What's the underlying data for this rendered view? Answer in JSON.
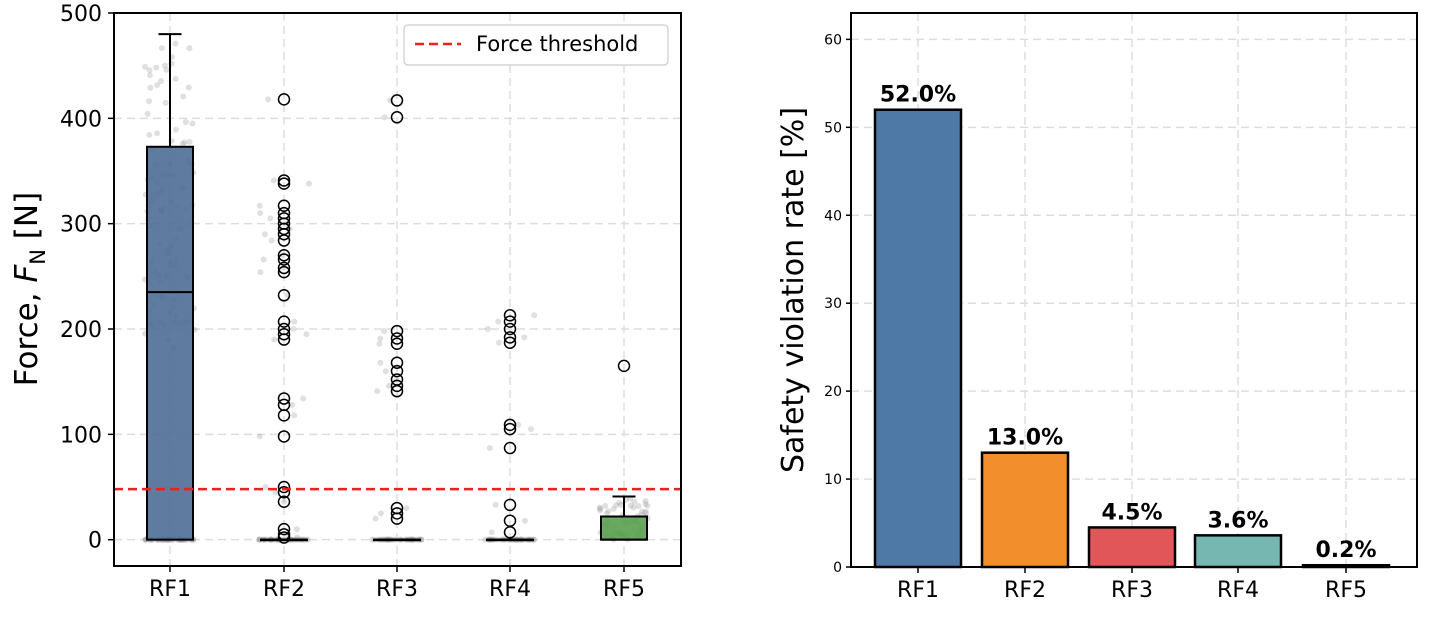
{
  "chart_data": [
    {
      "type": "box",
      "title": "",
      "xlabel": "",
      "ylabel_prefix": "Force, ",
      "ylabel_symbol": "F",
      "ylabel_subscript": "N",
      "ylabel_suffix": " [N]",
      "ylim": [
        -25,
        500
      ],
      "yticks": [
        0,
        100,
        200,
        300,
        400,
        500
      ],
      "grid": true,
      "legend": {
        "label": "Force threshold",
        "position": "top-right"
      },
      "threshold": {
        "value": 48,
        "color": "#e8221c"
      },
      "categories": [
        "RF1",
        "RF2",
        "RF3",
        "RF4",
        "RF5"
      ],
      "boxes": [
        {
          "name": "RF1",
          "q1": 0,
          "median": 235,
          "q3": 373,
          "whisker_low": 0,
          "whisker_high": 480,
          "color": "#4e6d95",
          "fliers": []
        },
        {
          "name": "RF2",
          "q1": 0,
          "median": 0,
          "q3": 0,
          "whisker_low": 0,
          "whisker_high": 0,
          "color": "#f28e2b",
          "fliers": [
            418,
            341,
            338,
            317,
            310,
            305,
            300,
            295,
            290,
            284,
            270,
            266,
            258,
            254,
            232,
            207,
            200,
            195,
            190,
            134,
            128,
            118,
            98,
            50,
            45,
            36,
            10,
            5,
            2
          ]
        },
        {
          "name": "RF3",
          "q1": 0,
          "median": 0,
          "q3": 0,
          "whisker_low": 0,
          "whisker_high": 0,
          "color": "#e15759",
          "fliers": [
            417,
            401,
            198,
            191,
            186,
            168,
            160,
            152,
            146,
            141,
            30,
            25,
            20
          ]
        },
        {
          "name": "RF4",
          "q1": 0,
          "median": 0,
          "q3": 0,
          "whisker_low": 0,
          "whisker_high": 0,
          "color": "#76b7b2",
          "fliers": [
            213,
            207,
            200,
            192,
            187,
            109,
            105,
            87,
            33,
            18,
            7
          ]
        },
        {
          "name": "RF5",
          "q1": 0,
          "median": 0,
          "q3": 22,
          "whisker_low": 0,
          "whisker_high": 41,
          "color": "#59a14f",
          "fliers": [
            165
          ]
        }
      ]
    },
    {
      "type": "bar",
      "title": "",
      "xlabel": "",
      "ylabel": "Safety violation rate [%]",
      "ylim": [
        0,
        63
      ],
      "yticks": [
        0,
        10,
        20,
        30,
        40,
        50,
        60
      ],
      "grid": true,
      "categories": [
        "RF1",
        "RF2",
        "RF3",
        "RF4",
        "RF5"
      ],
      "values": [
        52.0,
        13.0,
        4.5,
        3.6,
        0.2
      ],
      "data_labels": [
        "52.0%",
        "13.0%",
        "4.5%",
        "3.6%",
        "0.2%"
      ],
      "colors": [
        "#4e79a7",
        "#f28e2b",
        "#e15759",
        "#76b7b2",
        "#59a14f"
      ]
    }
  ]
}
